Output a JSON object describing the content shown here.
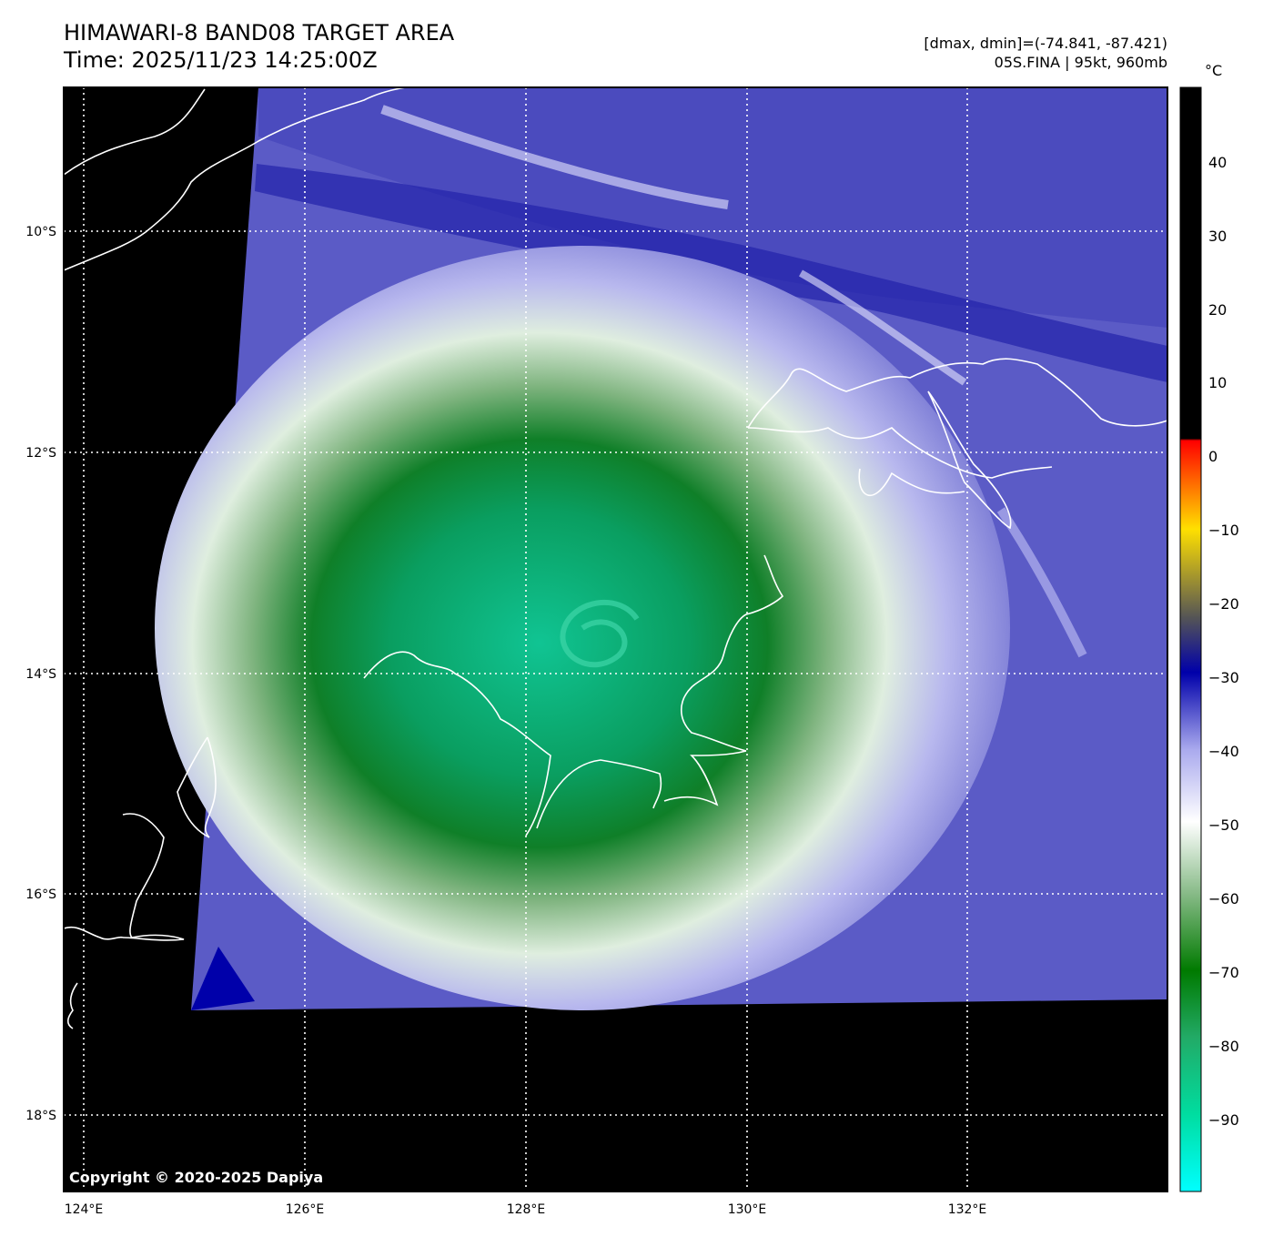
{
  "title": {
    "line1": "HIMAWARI-8 BAND08 TARGET AREA",
    "line2": "Time: 2025/11/23 14:25:00Z"
  },
  "info": {
    "range": "[dmax, dmin]=(-74.841, -87.421)",
    "storm": "05S.FINA | 95kt, 960mb"
  },
  "copyright": "Copyright © 2020-2025 Dapiya",
  "map": {
    "lon_range": [
      124,
      133.7
    ],
    "lat_range": [
      -18.7,
      -8.7
    ],
    "lon_ticks": [
      "124°E",
      "126°E",
      "128°E",
      "130°E",
      "132°E"
    ],
    "lat_ticks": [
      "10°S",
      "12°S",
      "14°S",
      "16°S",
      "18°S"
    ],
    "grid": "dotted white"
  },
  "colorbar": {
    "unit": "°C",
    "ticks": [
      "40",
      "30",
      "20",
      "10",
      "0",
      "−10",
      "−20",
      "−30",
      "−40",
      "−50",
      "−60",
      "−70",
      "−80",
      "−90"
    ],
    "colors": {
      "warm": "#000000",
      "zero": "#ff0000",
      "minus10": "#ffe000",
      "minus20": "#555555",
      "minus30": "#0000aa",
      "minus40": "#aaaaee",
      "minus50": "#ffffff",
      "minus60": "#88bb88",
      "minus70": "#007a00",
      "minus80": "#22aa66",
      "minus90": "#00dda0",
      "min": "#00ffff"
    }
  }
}
